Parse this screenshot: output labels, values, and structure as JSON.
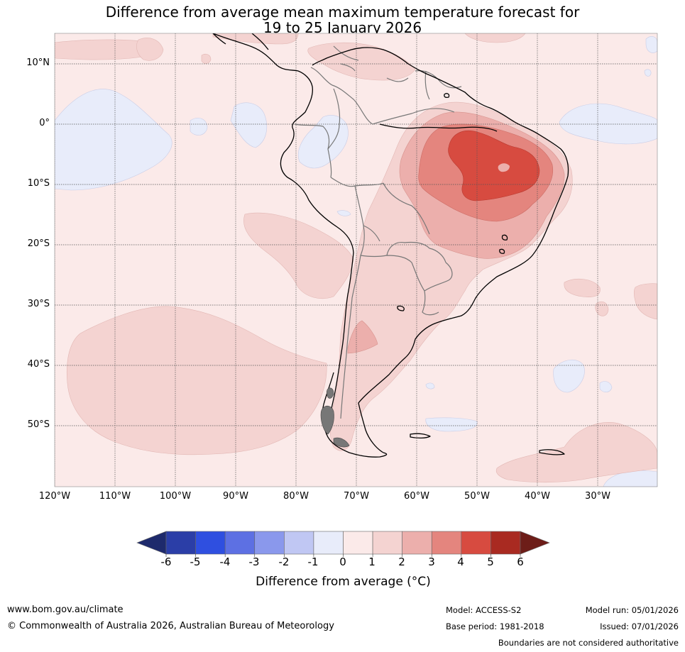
{
  "title": {
    "line1": "Difference from average mean maximum temperature forecast for",
    "line2": "19 to 25 January 2026"
  },
  "map": {
    "lat_labels": [
      "10°N",
      "0°",
      "10°S",
      "20°S",
      "30°S",
      "40°S",
      "50°S"
    ],
    "lon_labels": [
      "120°W",
      "110°W",
      "100°W",
      "90°W",
      "80°W",
      "70°W",
      "60°W",
      "50°W",
      "40°W",
      "30°W"
    ],
    "colors": {
      "background_anomaly_0_1": "#fbeae9",
      "anomaly_1_2": "#f4d3d1",
      "anomaly_2_3": "#ecafac",
      "anomaly_3_4": "#e4857e",
      "anomaly_4_5": "#d74b40",
      "anomaly_neg1_0": "#e8ecfa"
    }
  },
  "colorbar": {
    "ticks": [
      "-6",
      "-5",
      "-4",
      "-3",
      "-2",
      "-1",
      "0",
      "1",
      "2",
      "3",
      "4",
      "5",
      "6"
    ],
    "low_extend_color": "#1e2a6c",
    "colors": [
      "#2b3ea7",
      "#2f4fe0",
      "#5d70e3",
      "#8a98ec",
      "#c0c7f3",
      "#e8ecfa",
      "#fbeae9",
      "#f4d3d1",
      "#ecafac",
      "#e4857e",
      "#d74b40",
      "#a92a21"
    ],
    "high_extend_color": "#6d1d18",
    "label": "Difference from average (°C)"
  },
  "footer": {
    "website": "www.bom.gov.au/climate",
    "copyright": "© Commonwealth of Australia 2026, Australian Bureau of Meteorology",
    "model": "Model: ACCESS-S2",
    "base_period": "Base period: 1981-2018",
    "model_run": "Model run: 05/01/2026",
    "issued": "Issued: 07/01/2026",
    "disclaimer": "Boundaries are not considered authoritative"
  }
}
